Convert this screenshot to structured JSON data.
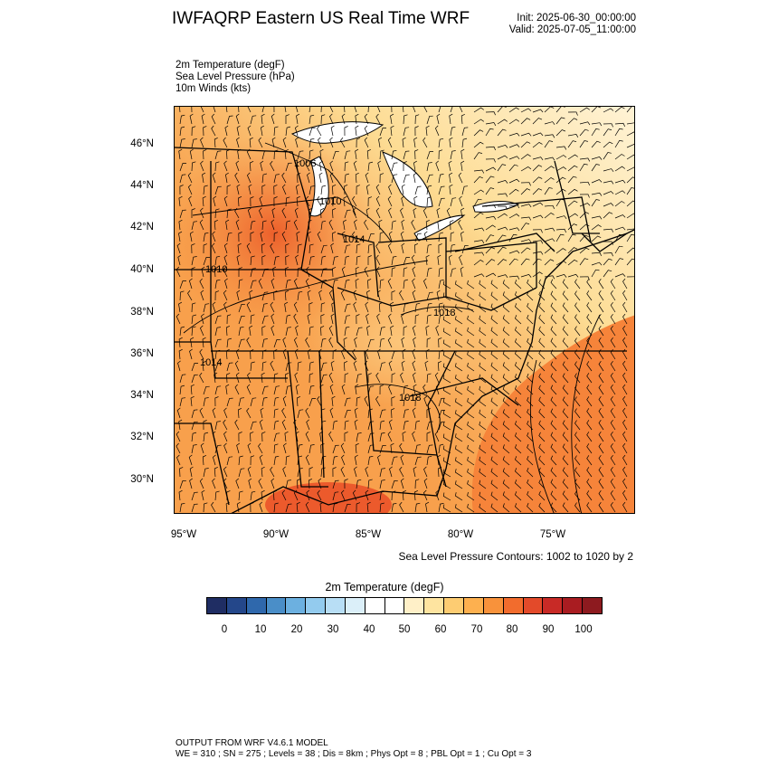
{
  "header": {
    "title": "IWFAQRP Eastern US Real Time WRF",
    "init": "Init: 2025-06-30_00:00:00",
    "valid": "Valid: 2025-07-05_11:00:00"
  },
  "fields": [
    "2m Temperature   (degF)",
    "Sea Level Pressure   (hPa)",
    "10m Winds   (kts)"
  ],
  "map": {
    "lat_labels": [
      "46°N",
      "44°N",
      "42°N",
      "40°N",
      "38°N",
      "36°N",
      "34°N",
      "32°N",
      "30°N"
    ],
    "lon_labels": [
      "95°W",
      "90°W",
      "85°W",
      "80°W",
      "75°W"
    ],
    "pressure_labels": [
      "1006",
      "1010",
      "1014",
      "1010",
      "1018",
      "1014",
      "1018"
    ],
    "contour_note": "Sea Level Pressure Contours: 1002 to 1020 by 2"
  },
  "colorbar": {
    "title": "2m Temperature   (degF)",
    "colors": [
      "#1f2d63",
      "#24478a",
      "#2f68ac",
      "#4a8ec8",
      "#6cb0e0",
      "#93cbee",
      "#b8def5",
      "#dbeff9",
      "#ffffff",
      "#ffffff",
      "#fff0c8",
      "#fee4a0",
      "#fdcc72",
      "#fdb04f",
      "#f8923b",
      "#f26c2d",
      "#e34a2a",
      "#c82a26",
      "#a91c21",
      "#8d1a1f"
    ],
    "labels": [
      "0",
      "10",
      "20",
      "30",
      "40",
      "50",
      "60",
      "70",
      "80",
      "90",
      "100"
    ]
  },
  "footer": {
    "line1": "OUTPUT FROM WRF V4.6.1 MODEL",
    "line2": "WE = 310 ; SN = 275 ; Levels = 38 ; Dis = 8km ; Phys Opt = 8 ; PBL Opt = 1 ; Cu Opt = 3"
  }
}
